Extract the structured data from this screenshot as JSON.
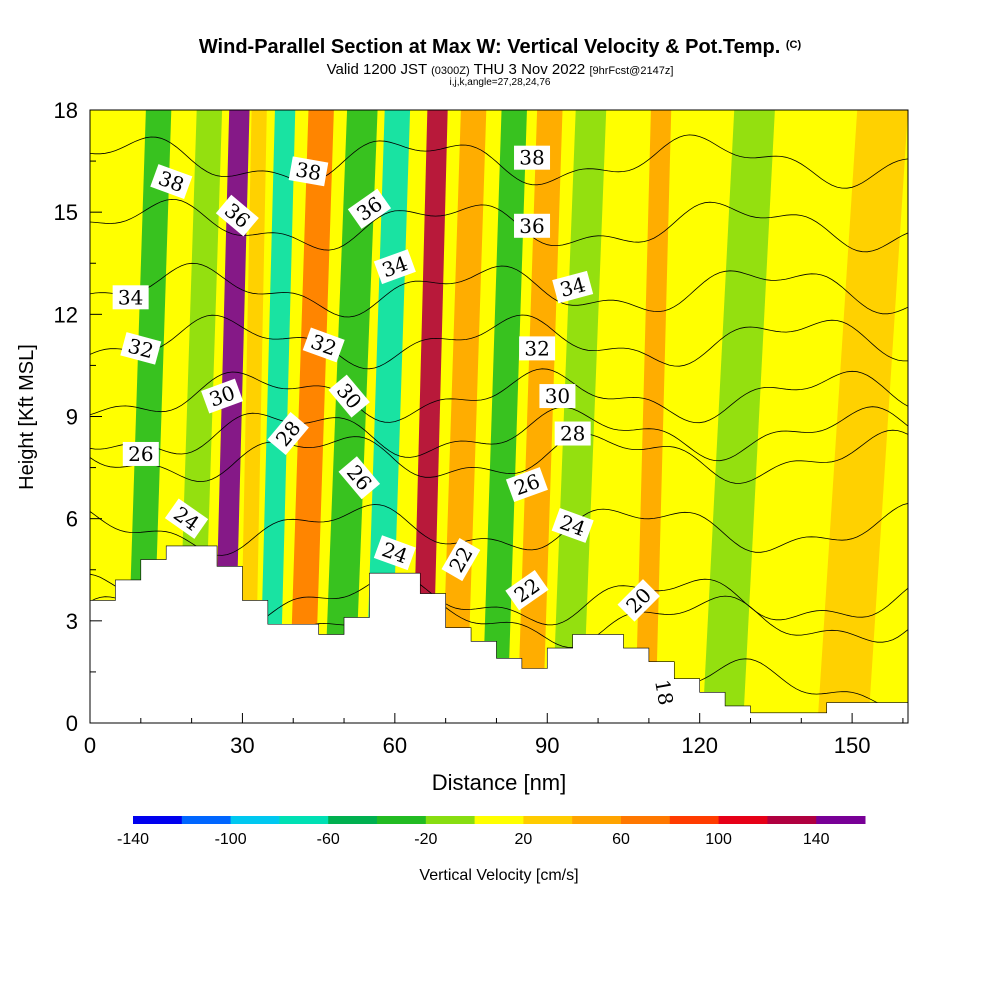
{
  "title": {
    "main": "Wind-Parallel Section at Max W: Vertical Velocity & Pot.Temp.",
    "copyright": "(C)",
    "valid_prefix": "Valid 1200 JST",
    "valid_utc": "(0300Z)",
    "valid_date": "THU 3 Nov 2022",
    "forecast": "[9hrFcst@2147z]",
    "indices": "i,j,k,angle=27,28,24,76"
  },
  "chart_data": {
    "type": "heatmap",
    "xlabel": "Distance [nm]",
    "ylabel": "Height [Kft MSL]",
    "xlim": [
      0,
      161
    ],
    "ylim": [
      0,
      18
    ],
    "x_ticks": [
      0,
      30,
      60,
      90,
      120,
      150
    ],
    "y_ticks": [
      0,
      3,
      6,
      9,
      12,
      15,
      18
    ],
    "colorbar": {
      "label": "Vertical Velocity [cm/s]",
      "range": [
        -140,
        160
      ],
      "tick_labels": [
        "-140",
        "-100",
        "-60",
        "-20",
        "20",
        "60",
        "100",
        "140"
      ],
      "tick_values": [
        -140,
        -100,
        -60,
        -20,
        20,
        60,
        100,
        140
      ],
      "colors": [
        "#0000ee",
        "#0066ff",
        "#00c8f0",
        "#00e0b4",
        "#00b050",
        "#22bb22",
        "#88dd11",
        "#ffff00",
        "#ffcc00",
        "#ffa400",
        "#ff7800",
        "#ff3c00",
        "#e60018",
        "#b00040",
        "#780096"
      ]
    },
    "terrain_kft": [
      [
        0,
        3.6
      ],
      [
        5,
        4.2
      ],
      [
        10,
        4.8
      ],
      [
        15,
        5.2
      ],
      [
        20,
        5.2
      ],
      [
        25,
        4.6
      ],
      [
        30,
        3.6
      ],
      [
        35,
        2.9
      ],
      [
        40,
        2.9
      ],
      [
        45,
        2.6
      ],
      [
        50,
        3.1
      ],
      [
        55,
        4.4
      ],
      [
        60,
        4.4
      ],
      [
        65,
        3.8
      ],
      [
        70,
        2.8
      ],
      [
        75,
        2.4
      ],
      [
        80,
        1.9
      ],
      [
        85,
        1.6
      ],
      [
        90,
        2.2
      ],
      [
        95,
        2.6
      ],
      [
        100,
        2.6
      ],
      [
        105,
        2.2
      ],
      [
        110,
        1.8
      ],
      [
        115,
        1.3
      ],
      [
        120,
        0.9
      ],
      [
        125,
        0.5
      ],
      [
        130,
        0.3
      ],
      [
        140,
        0.3
      ],
      [
        145,
        0.6
      ],
      [
        155,
        0.6
      ],
      [
        161,
        0.6
      ]
    ],
    "velocity_bands_cm_s": [
      {
        "x": 8,
        "w": 5,
        "value": -40
      },
      {
        "x": 18,
        "w": 5,
        "value": -20
      },
      {
        "x": 25,
        "w": 4,
        "value": 140
      },
      {
        "x": 30,
        "w": 3,
        "value": 20
      },
      {
        "x": 34,
        "w": 4,
        "value": -80
      },
      {
        "x": 40,
        "w": 5,
        "value": 60
      },
      {
        "x": 47,
        "w": 6,
        "value": -40
      },
      {
        "x": 55,
        "w": 5,
        "value": -80
      },
      {
        "x": 64,
        "w": 4,
        "value": 120
      },
      {
        "x": 70,
        "w": 5,
        "value": 40
      },
      {
        "x": 78,
        "w": 5,
        "value": -40
      },
      {
        "x": 85,
        "w": 5,
        "value": 40
      },
      {
        "x": 92,
        "w": 6,
        "value": -20
      },
      {
        "x": 108,
        "w": 4,
        "value": 40
      },
      {
        "x": 122,
        "w": 8,
        "value": -20
      },
      {
        "x": 145,
        "w": 10,
        "value": 20
      }
    ],
    "theta_contours": [
      {
        "value": 18,
        "label": "18",
        "height_kft": 1.1
      },
      {
        "value": 20,
        "label": "20",
        "height_kft": 3.0
      },
      {
        "value": 22,
        "label": "22",
        "height_kft": 3.6
      },
      {
        "value": 24,
        "label": "24",
        "height_kft": 5.7
      },
      {
        "value": 26,
        "label": "26",
        "height_kft": 7.8
      },
      {
        "value": 28,
        "label": "28",
        "height_kft": 8.5
      },
      {
        "value": 30,
        "label": "30",
        "height_kft": 9.6
      },
      {
        "value": 32,
        "label": "32",
        "height_kft": 11.2
      },
      {
        "value": 34,
        "label": "34",
        "height_kft": 12.7
      },
      {
        "value": 36,
        "label": "36",
        "height_kft": 14.6
      },
      {
        "value": 38,
        "label": "38",
        "height_kft": 16.5
      }
    ],
    "contour_labels": [
      {
        "text": "38",
        "x": 16,
        "y": 15.9,
        "rot": 20
      },
      {
        "text": "38",
        "x": 43,
        "y": 16.2,
        "rot": 10
      },
      {
        "text": "38",
        "x": 87,
        "y": 16.6,
        "rot": 0
      },
      {
        "text": "36",
        "x": 29,
        "y": 14.9,
        "rot": 40
      },
      {
        "text": "36",
        "x": 55,
        "y": 15.1,
        "rot": -35
      },
      {
        "text": "36",
        "x": 87,
        "y": 14.6,
        "rot": 0
      },
      {
        "text": "34",
        "x": 8,
        "y": 12.5,
        "rot": 0
      },
      {
        "text": "34",
        "x": 60,
        "y": 13.4,
        "rot": -20
      },
      {
        "text": "34",
        "x": 95,
        "y": 12.8,
        "rot": -15
      },
      {
        "text": "32",
        "x": 10,
        "y": 11.0,
        "rot": 15
      },
      {
        "text": "32",
        "x": 46,
        "y": 11.1,
        "rot": 20
      },
      {
        "text": "32",
        "x": 88,
        "y": 11.0,
        "rot": 0
      },
      {
        "text": "30",
        "x": 26,
        "y": 9.6,
        "rot": -20
      },
      {
        "text": "30",
        "x": 51,
        "y": 9.6,
        "rot": 50
      },
      {
        "text": "30",
        "x": 92,
        "y": 9.6,
        "rot": 0
      },
      {
        "text": "28",
        "x": 39,
        "y": 8.5,
        "rot": -50
      },
      {
        "text": "28",
        "x": 95,
        "y": 8.5,
        "rot": 0
      },
      {
        "text": "26",
        "x": 10,
        "y": 7.9,
        "rot": 0
      },
      {
        "text": "26",
        "x": 53,
        "y": 7.2,
        "rot": 50
      },
      {
        "text": "26",
        "x": 86,
        "y": 7.0,
        "rot": -20
      },
      {
        "text": "24",
        "x": 19,
        "y": 6.0,
        "rot": 35
      },
      {
        "text": "24",
        "x": 60,
        "y": 5.0,
        "rot": 20
      },
      {
        "text": "24",
        "x": 95,
        "y": 5.8,
        "rot": 20
      },
      {
        "text": "22",
        "x": 73,
        "y": 4.8,
        "rot": -60
      },
      {
        "text": "22",
        "x": 86,
        "y": 3.9,
        "rot": -35
      },
      {
        "text": "20",
        "x": 108,
        "y": 3.6,
        "rot": -45
      },
      {
        "text": "18",
        "x": 113,
        "y": 0.9,
        "rot": 80
      }
    ]
  }
}
